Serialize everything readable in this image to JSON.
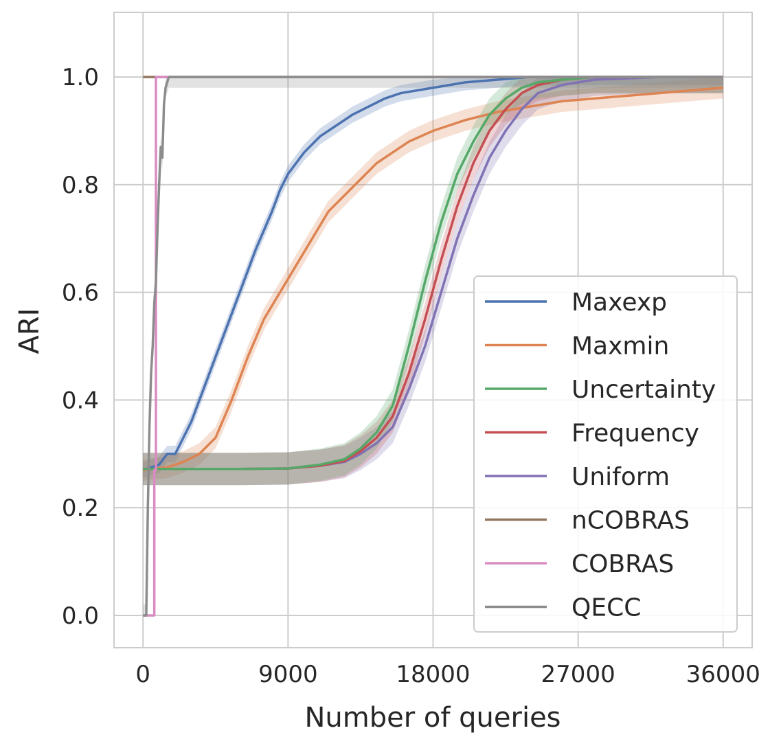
{
  "chart_data": {
    "type": "line",
    "title": "",
    "xlabel": "Number of queries",
    "ylabel": "ARI",
    "xlim": [
      -1800,
      37800
    ],
    "ylim": [
      -0.06,
      1.12
    ],
    "xticks": [
      0,
      9000,
      18000,
      27000,
      36000
    ],
    "xtick_labels": [
      "0",
      "9000",
      "18000",
      "27000",
      "36000"
    ],
    "yticks": [
      0.0,
      0.2,
      0.4,
      0.6,
      0.8,
      1.0
    ],
    "ytick_labels": [
      "0.0",
      "0.2",
      "0.4",
      "0.6",
      "0.8",
      "1.0"
    ],
    "grid": true,
    "legend_position": "lower-right",
    "series": [
      {
        "name": "Maxexp",
        "color": "#4c72b0",
        "x": [
          0,
          1000,
          1500,
          2000,
          2500,
          3000,
          4000,
          5000,
          6000,
          7000,
          8000,
          8500,
          9000,
          10000,
          11000,
          12000,
          13000,
          14000,
          15000,
          16000,
          18000,
          20000,
          22000,
          24000,
          26000,
          30000,
          36000
        ],
        "y": [
          0.27,
          0.28,
          0.3,
          0.3,
          0.33,
          0.36,
          0.44,
          0.52,
          0.6,
          0.68,
          0.75,
          0.79,
          0.82,
          0.86,
          0.89,
          0.91,
          0.93,
          0.945,
          0.96,
          0.97,
          0.98,
          0.99,
          0.995,
          1.0,
          1.0,
          1.0,
          1.0
        ],
        "band": 0.015
      },
      {
        "name": "Maxmin",
        "color": "#dd8452",
        "x": [
          0,
          1500,
          2500,
          3500,
          4500,
          5500,
          6500,
          7500,
          8500,
          9500,
          10500,
          11500,
          12500,
          13500,
          14500,
          15500,
          16500,
          18000,
          20000,
          22000,
          24000,
          26000,
          28000,
          30000,
          32000,
          34000,
          36000
        ],
        "y": [
          0.27,
          0.275,
          0.285,
          0.3,
          0.33,
          0.4,
          0.48,
          0.55,
          0.6,
          0.65,
          0.7,
          0.75,
          0.78,
          0.81,
          0.84,
          0.86,
          0.88,
          0.9,
          0.92,
          0.935,
          0.945,
          0.955,
          0.96,
          0.965,
          0.97,
          0.975,
          0.98
        ],
        "band": 0.02
      },
      {
        "name": "Uniform",
        "color": "#8172b3",
        "x": [
          0,
          6000,
          9000,
          11000,
          12500,
          13500,
          14500,
          15500,
          16500,
          17500,
          18500,
          19500,
          20500,
          21500,
          22500,
          23500,
          24500,
          26000,
          28000,
          32000,
          36000
        ],
        "y": [
          0.272,
          0.272,
          0.273,
          0.278,
          0.285,
          0.3,
          0.32,
          0.35,
          0.42,
          0.5,
          0.6,
          0.7,
          0.78,
          0.85,
          0.9,
          0.94,
          0.97,
          0.985,
          0.995,
          1.0,
          1.0
        ],
        "band": 0.03
      },
      {
        "name": "Frequency",
        "color": "#c44e52",
        "x": [
          0,
          6000,
          9000,
          11000,
          12500,
          13500,
          14500,
          15500,
          16500,
          17500,
          18500,
          19500,
          20500,
          21500,
          22500,
          23500,
          24500,
          26000,
          28000,
          32000,
          36000
        ],
        "y": [
          0.272,
          0.272,
          0.273,
          0.278,
          0.287,
          0.305,
          0.33,
          0.37,
          0.45,
          0.55,
          0.66,
          0.76,
          0.84,
          0.9,
          0.94,
          0.97,
          0.985,
          0.995,
          1.0,
          1.0,
          1.0
        ],
        "band": 0.03
      },
      {
        "name": "Uncertainty",
        "color": "#55a868",
        "x": [
          0,
          6000,
          9000,
          11000,
          12500,
          13500,
          14500,
          15500,
          16500,
          17500,
          18500,
          19500,
          20500,
          21500,
          22500,
          23500,
          24500,
          26000,
          28000,
          32000,
          36000
        ],
        "y": [
          0.272,
          0.272,
          0.273,
          0.28,
          0.29,
          0.31,
          0.34,
          0.39,
          0.5,
          0.62,
          0.73,
          0.82,
          0.88,
          0.93,
          0.96,
          0.98,
          0.99,
          0.995,
          1.0,
          1.0,
          1.0
        ],
        "band": 0.03
      },
      {
        "name": "nCOBRAS",
        "color": "#937860",
        "x": [
          0,
          36000
        ],
        "y": [
          1.0,
          1.0
        ],
        "band": 0
      },
      {
        "name": "COBRAS",
        "color": "#da8bc3",
        "x": [
          0,
          700,
          700,
          800,
          800,
          36000
        ],
        "y": [
          0.0,
          0.0,
          0.27,
          0.27,
          1.0,
          1.0
        ],
        "band": 0
      },
      {
        "name": "QECC",
        "color": "#8c8c8c",
        "x": [
          0,
          200,
          300,
          400,
          500,
          600,
          700,
          800,
          900,
          1000,
          1100,
          1200,
          1300,
          1400,
          1600,
          36000
        ],
        "y": [
          0.0,
          0.0,
          0.2,
          0.35,
          0.45,
          0.5,
          0.58,
          0.62,
          0.72,
          0.8,
          0.87,
          0.85,
          0.95,
          0.98,
          1.0,
          1.0
        ],
        "band": 0.02
      }
    ]
  },
  "legend": {
    "items": [
      {
        "label": "Maxexp",
        "color": "#4c72b0"
      },
      {
        "label": "Maxmin",
        "color": "#dd8452"
      },
      {
        "label": "Uncertainty",
        "color": "#55a868"
      },
      {
        "label": "Frequency",
        "color": "#c44e52"
      },
      {
        "label": "Uniform",
        "color": "#8172b3"
      },
      {
        "label": "nCOBRAS",
        "color": "#937860"
      },
      {
        "label": "COBRAS",
        "color": "#da8bc3"
      },
      {
        "label": "QECC",
        "color": "#8c8c8c"
      }
    ]
  }
}
